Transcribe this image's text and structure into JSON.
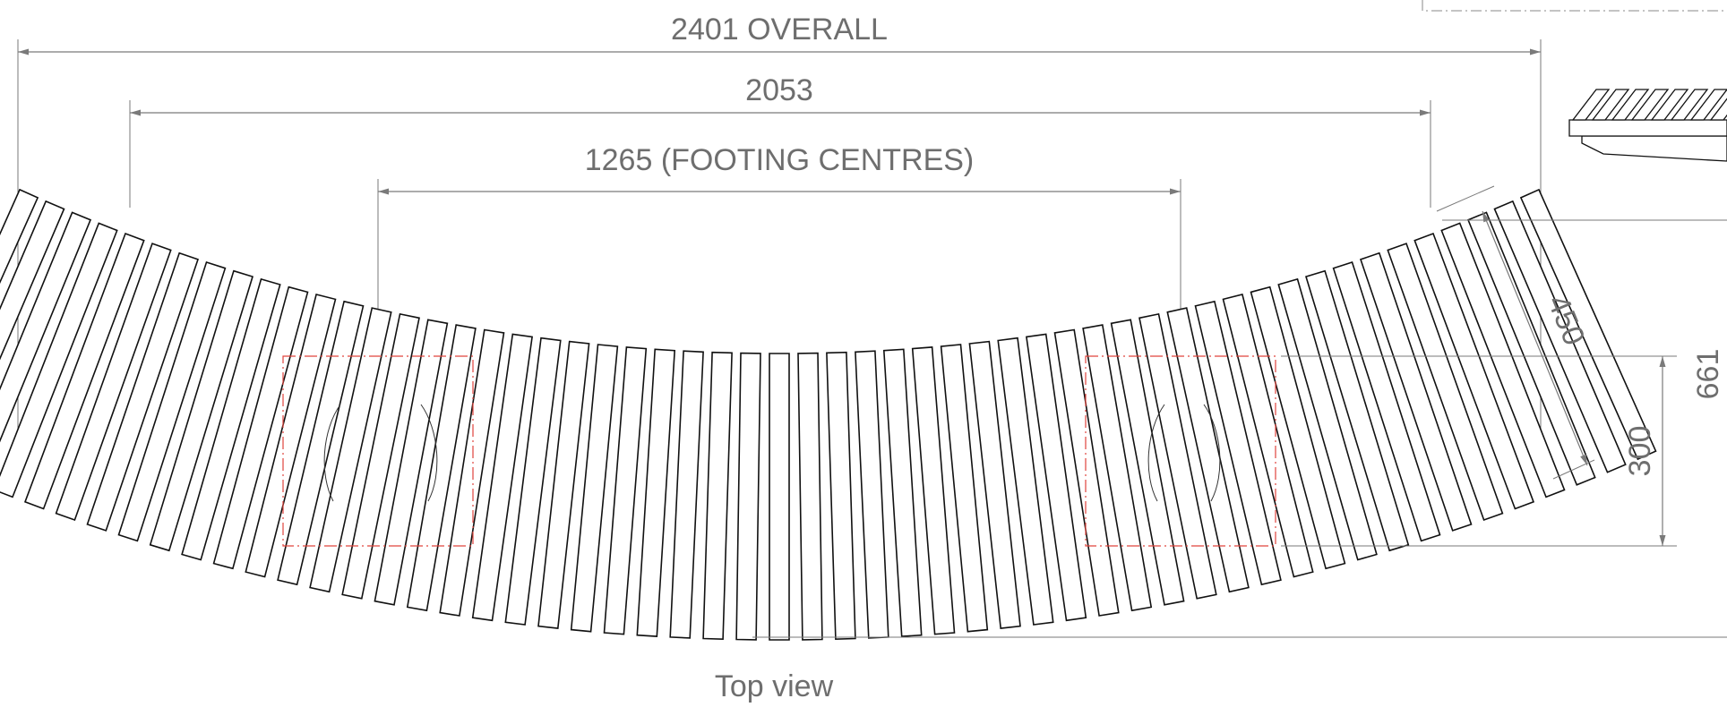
{
  "dimensions": {
    "overall": "2401 OVERALL",
    "inner": "2053",
    "footing": "1265 (FOOTING CENTRES)",
    "depth": "450",
    "footing_depth": "300",
    "total_depth": "661"
  },
  "view_title": "Top view",
  "colors": {
    "dimension": "#6e6e6e",
    "outline": "#111111",
    "footing": "#e0443c"
  }
}
